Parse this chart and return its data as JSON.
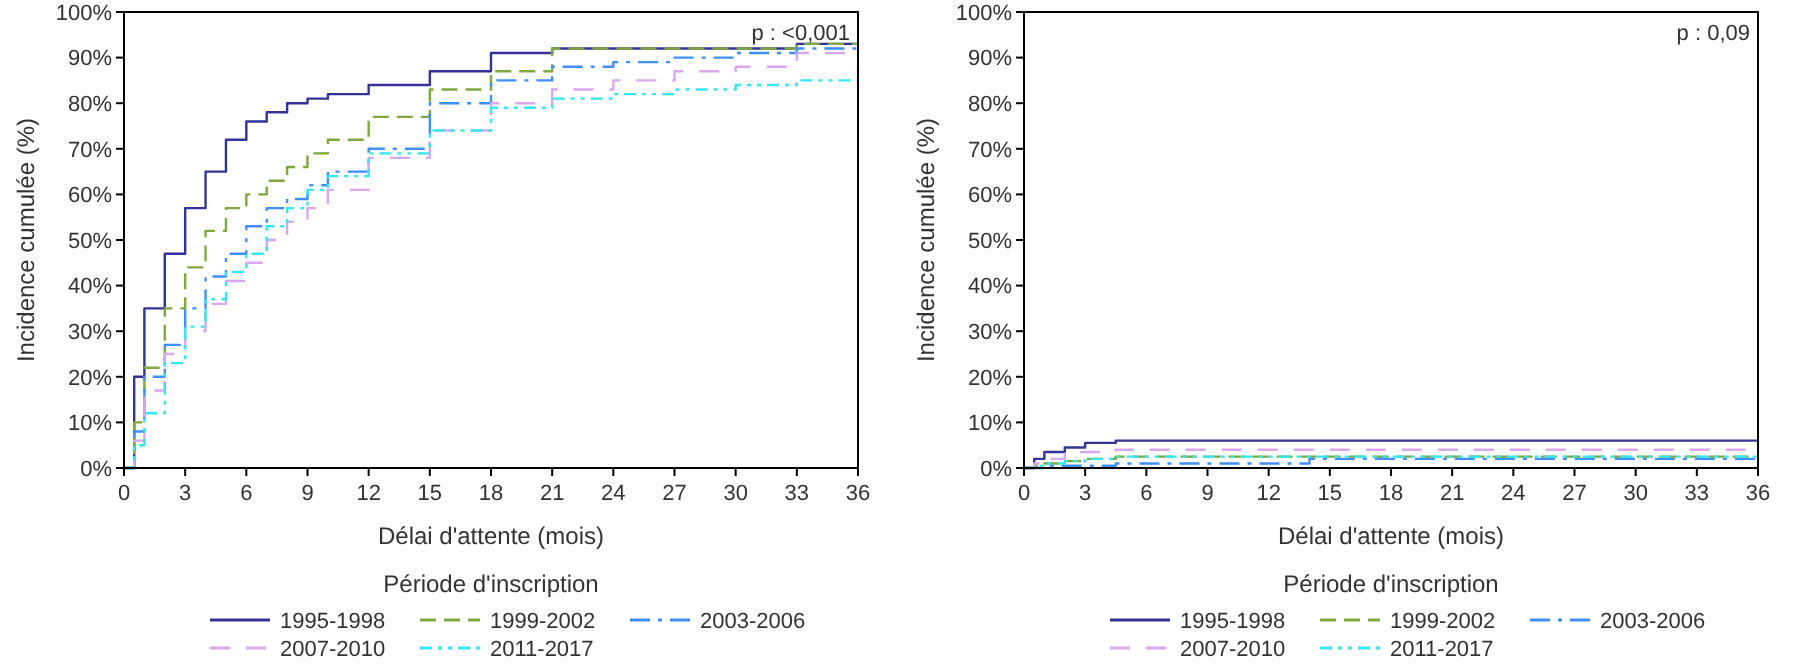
{
  "chart_data": [
    {
      "type": "step",
      "xlabel": "Délai d'attente (mois)",
      "ylabel": "Incidence cumulée (%)",
      "legend_title": "Période d'inscription",
      "legend": "bottom",
      "grid": false,
      "marker": "none",
      "annotations": [
        "p : <0,001"
      ],
      "x": [
        0,
        0.5,
        1,
        2,
        3,
        4,
        5,
        6,
        7,
        8,
        9,
        10,
        12,
        15,
        18,
        21,
        24,
        27,
        30,
        33,
        36
      ],
      "xlim": [
        0,
        36
      ],
      "xticks": [
        0,
        3,
        6,
        9,
        12,
        15,
        18,
        21,
        24,
        27,
        30,
        33,
        36
      ],
      "ylim": [
        0,
        100
      ],
      "yticks": [
        {
          "value": 0,
          "label": "0%"
        },
        {
          "value": 10,
          "label": "10%"
        },
        {
          "value": 20,
          "label": "20%"
        },
        {
          "value": 30,
          "label": "30%"
        },
        {
          "value": 40,
          "label": "40%"
        },
        {
          "value": 50,
          "label": "50%"
        },
        {
          "value": 60,
          "label": "60%"
        },
        {
          "value": 70,
          "label": "70%"
        },
        {
          "value": 80,
          "label": "80%"
        },
        {
          "value": 90,
          "label": "90%"
        },
        {
          "value": 100,
          "label": "100%"
        }
      ],
      "series": [
        {
          "name": "1995-1998",
          "color": "#333399",
          "line_style": "solid",
          "values": [
            0,
            20,
            35,
            47,
            57,
            65,
            72,
            76,
            78,
            80,
            81,
            82,
            84,
            87,
            91,
            92,
            92,
            92,
            92,
            93,
            93
          ]
        },
        {
          "name": "1999-2002",
          "color": "#7fa83f",
          "line_style": "dashed",
          "values": [
            0,
            10,
            22,
            35,
            44,
            52,
            57,
            60,
            63,
            66,
            69,
            72,
            77,
            83,
            87,
            92,
            92,
            92,
            92,
            93,
            93
          ]
        },
        {
          "name": "2003-2006",
          "color": "#3f8fff",
          "line_style": "dashed",
          "values": [
            0,
            8,
            20,
            27,
            35,
            42,
            47,
            53,
            57,
            59,
            62,
            65,
            70,
            80,
            85,
            88,
            89,
            90,
            91,
            92,
            93
          ]
        },
        {
          "name": "2007-2010",
          "color": "#d9a8f0",
          "line_style": "dashed",
          "values": [
            0,
            6,
            17,
            25,
            30,
            36,
            41,
            45,
            50,
            54,
            57,
            61,
            68,
            74,
            80,
            83,
            85,
            87,
            88,
            91,
            92
          ]
        },
        {
          "name": "2011-2017",
          "color": "#33e8f0",
          "line_style": "dashed",
          "values": [
            0,
            5,
            12,
            23,
            31,
            37,
            43,
            47,
            53,
            57,
            61,
            64,
            69,
            74,
            79,
            81,
            82,
            83,
            84,
            85,
            88
          ]
        }
      ]
    },
    {
      "type": "step",
      "xlabel": "Délai d'attente (mois)",
      "ylabel": "Incidence cumulée (%)",
      "legend_title": "Période d'inscription",
      "legend": "bottom",
      "grid": false,
      "marker": "none",
      "annotations": [
        "p : 0,09"
      ],
      "x": [
        0,
        0.5,
        1,
        2,
        3,
        4.5,
        14,
        36
      ],
      "xlim": [
        0,
        36
      ],
      "xticks": [
        0,
        3,
        6,
        9,
        12,
        15,
        18,
        21,
        24,
        27,
        30,
        33,
        36
      ],
      "ylim": [
        0,
        100
      ],
      "yticks": [
        {
          "value": 0,
          "label": "0%"
        },
        {
          "value": 10,
          "label": "10%"
        },
        {
          "value": 20,
          "label": "20%"
        },
        {
          "value": 30,
          "label": "30%"
        },
        {
          "value": 40,
          "label": "40%"
        },
        {
          "value": 50,
          "label": "50%"
        },
        {
          "value": 60,
          "label": "60%"
        },
        {
          "value": 70,
          "label": "70%"
        },
        {
          "value": 80,
          "label": "80%"
        },
        {
          "value": 90,
          "label": "90%"
        },
        {
          "value": 100,
          "label": "100%"
        }
      ],
      "series": [
        {
          "name": "1995-1998",
          "color": "#333399",
          "line_style": "solid",
          "values": [
            0,
            2,
            3.5,
            4.5,
            5.5,
            6,
            6,
            6
          ]
        },
        {
          "name": "1999-2002",
          "color": "#7fa83f",
          "line_style": "dashed",
          "values": [
            0,
            0.5,
            1,
            1.5,
            2,
            2.5,
            2.5,
            2.5
          ]
        },
        {
          "name": "2003-2006",
          "color": "#3f8fff",
          "line_style": "dashed",
          "values": [
            0,
            0,
            0.5,
            0.5,
            0.5,
            1,
            2,
            2
          ]
        },
        {
          "name": "2007-2010",
          "color": "#d9a8f0",
          "line_style": "dashed",
          "values": [
            0,
            1,
            2,
            3.5,
            3.5,
            4,
            4,
            4
          ]
        },
        {
          "name": "2011-2017",
          "color": "#33e8f0",
          "line_style": "dashed",
          "values": [
            0,
            0.5,
            1,
            1.5,
            2,
            2.5,
            2.5,
            2.5
          ]
        }
      ]
    }
  ]
}
